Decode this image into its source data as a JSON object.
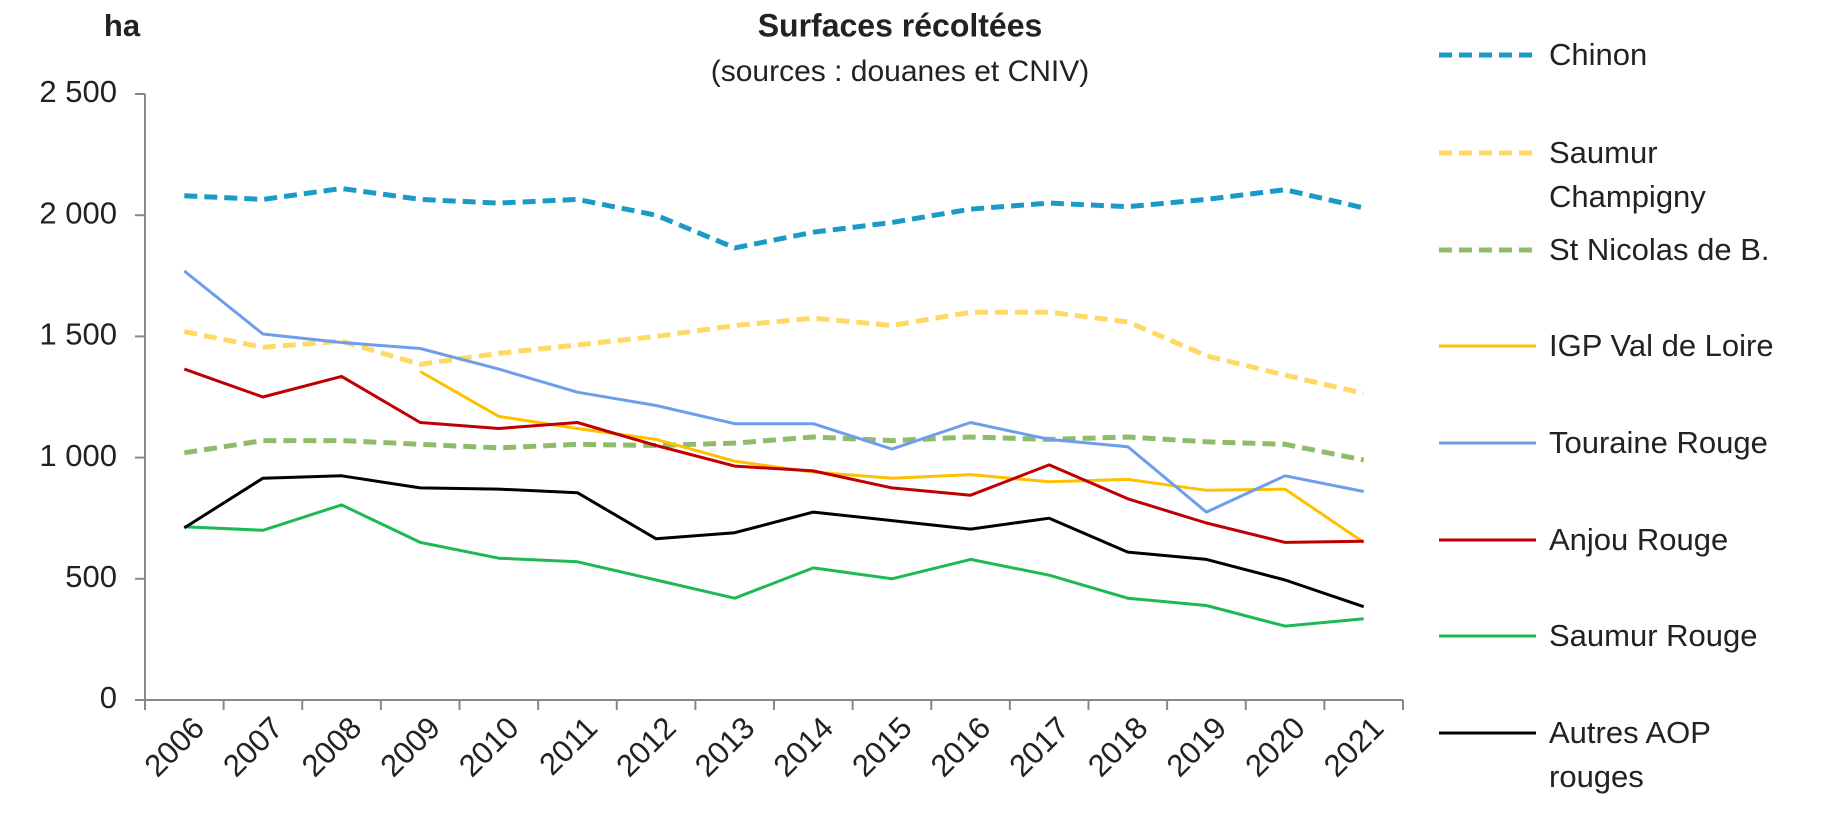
{
  "chart_data": {
    "type": "line",
    "title": "Surfaces récoltées",
    "subtitle": "(sources : douanes et CNIV)",
    "y_label": "ha",
    "categories": [
      "2006",
      "2007",
      "2008",
      "2009",
      "2010",
      "2011",
      "2012",
      "2013",
      "2014",
      "2015",
      "2016",
      "2017",
      "2018",
      "2019",
      "2020",
      "2021"
    ],
    "ylim": [
      0,
      2500
    ],
    "yticks": [
      0,
      500,
      {
        "value": 1000,
        "label": "1 000"
      },
      {
        "value": 1500,
        "label": "1 500"
      },
      {
        "value": 2000,
        "label": "2 000"
      },
      {
        "value": 2500,
        "label": "2 500"
      }
    ],
    "series": [
      {
        "name": "Chinon",
        "color": "#1a9bc7",
        "dashed": true,
        "values": [
          2080,
          2065,
          2110,
          2065,
          2050,
          2065,
          2000,
          1865,
          1930,
          1970,
          2025,
          2050,
          2035,
          2065,
          2105,
          2030
        ]
      },
      {
        "name": "Saumur Champigny",
        "color": "#ffd966",
        "dashed": true,
        "values": [
          1520,
          1455,
          1480,
          1385,
          1430,
          1465,
          1500,
          1545,
          1575,
          1545,
          1600,
          1600,
          1560,
          1420,
          1340,
          1265
        ]
      },
      {
        "name": "St Nicolas de B.",
        "color": "#8fbc6a",
        "dashed": true,
        "values": [
          1020,
          1070,
          1070,
          1055,
          1040,
          1055,
          1050,
          1060,
          1085,
          1070,
          1085,
          1075,
          1085,
          1065,
          1055,
          990
        ]
      },
      {
        "name": "IGP Val de Loire",
        "color": "#ffc000",
        "dashed": false,
        "values": [
          null,
          null,
          null,
          1355,
          1170,
          1120,
          1075,
          985,
          940,
          915,
          930,
          900,
          910,
          865,
          870,
          650
        ]
      },
      {
        "name": "Touraine Rouge",
        "color": "#6d9eeb",
        "dashed": false,
        "values": [
          1770,
          1510,
          1475,
          1450,
          1365,
          1270,
          1215,
          1140,
          1140,
          1035,
          1145,
          1075,
          1045,
          775,
          925,
          860
        ]
      },
      {
        "name": "Anjou Rouge",
        "color": "#c00000",
        "dashed": false,
        "values": [
          1365,
          1250,
          1335,
          1145,
          1120,
          1145,
          1050,
          965,
          945,
          875,
          845,
          970,
          830,
          730,
          650,
          655
        ]
      },
      {
        "name": "Saumur Rouge",
        "color": "#1db954",
        "dashed": false,
        "values": [
          715,
          700,
          805,
          650,
          585,
          570,
          495,
          420,
          545,
          500,
          580,
          515,
          420,
          390,
          305,
          335
        ]
      },
      {
        "name": "Autres AOP rouges",
        "color": "#000000",
        "dashed": false,
        "values": [
          710,
          915,
          925,
          875,
          870,
          855,
          665,
          690,
          775,
          740,
          705,
          750,
          610,
          580,
          495,
          385
        ]
      }
    ]
  }
}
